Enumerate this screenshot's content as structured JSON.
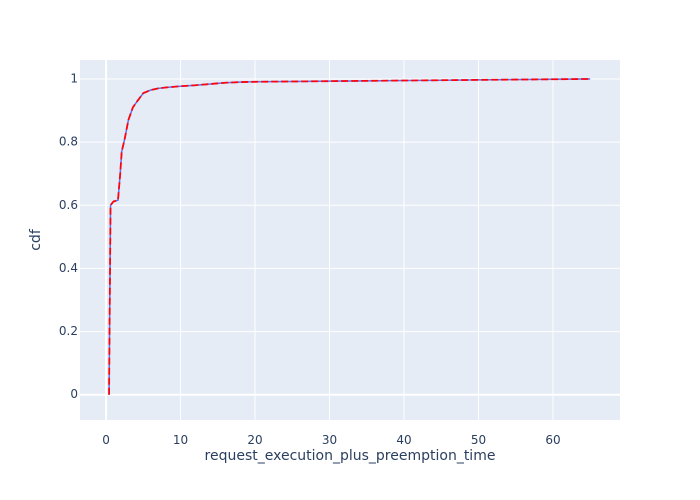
{
  "chart_data": {
    "type": "line",
    "title": "",
    "xlabel": "request_execution_plus_preemption_time",
    "ylabel": "cdf",
    "xlim": [
      -3.5,
      69
    ],
    "ylim": [
      -0.08,
      1.06
    ],
    "x_ticks": [
      0,
      10,
      20,
      30,
      40,
      50,
      60
    ],
    "y_ticks": [
      0,
      0.2,
      0.4,
      0.6,
      0.8,
      1
    ],
    "x_tick_labels": [
      "0",
      "10",
      "20",
      "30",
      "40",
      "50",
      "60"
    ],
    "y_tick_labels": [
      "0",
      "0.2",
      "0.4",
      "0.6",
      "0.8",
      "1"
    ],
    "grid": true,
    "plot_background": "#e5ecf6",
    "grid_color": "#ffffff",
    "series": [
      {
        "color": "#636efa",
        "line_style": "solid",
        "x": [
          0.4,
          0.6,
          1.0,
          1.6,
          1.9,
          2.1,
          2.5,
          3.0,
          3.6,
          4.2,
          5.0,
          6.0,
          7.0,
          8.0,
          9.0,
          10.0,
          12.0,
          14.0,
          16.0,
          18.0,
          20.0,
          25.0,
          30.0,
          35.0,
          40.0,
          45.0,
          50.0,
          55.0,
          60.0,
          65.0
        ],
        "y": [
          0.0,
          0.6,
          0.612,
          0.616,
          0.7,
          0.77,
          0.81,
          0.87,
          0.91,
          0.93,
          0.955,
          0.965,
          0.97,
          0.973,
          0.975,
          0.977,
          0.98,
          0.984,
          0.988,
          0.99,
          0.991,
          0.992,
          0.993,
          0.994,
          0.995,
          0.996,
          0.997,
          0.998,
          0.999,
          1.0
        ]
      },
      {
        "color": "#ff0000",
        "line_style": "solid-with-dashes",
        "x": [
          0.4,
          0.6,
          1.0,
          1.6,
          1.9,
          2.1,
          2.5,
          3.0,
          3.6,
          4.2,
          5.0,
          6.0,
          7.0,
          8.0,
          9.0,
          10.0,
          12.0,
          14.0,
          16.0,
          18.0,
          20.0,
          25.0,
          30.0,
          35.0,
          40.0,
          45.0,
          50.0,
          55.0,
          60.0,
          65.0
        ],
        "y": [
          0.0,
          0.6,
          0.612,
          0.616,
          0.7,
          0.77,
          0.81,
          0.87,
          0.91,
          0.93,
          0.955,
          0.965,
          0.97,
          0.973,
          0.975,
          0.977,
          0.98,
          0.984,
          0.988,
          0.99,
          0.991,
          0.992,
          0.993,
          0.994,
          0.995,
          0.996,
          0.997,
          0.998,
          0.999,
          1.0
        ]
      }
    ]
  }
}
